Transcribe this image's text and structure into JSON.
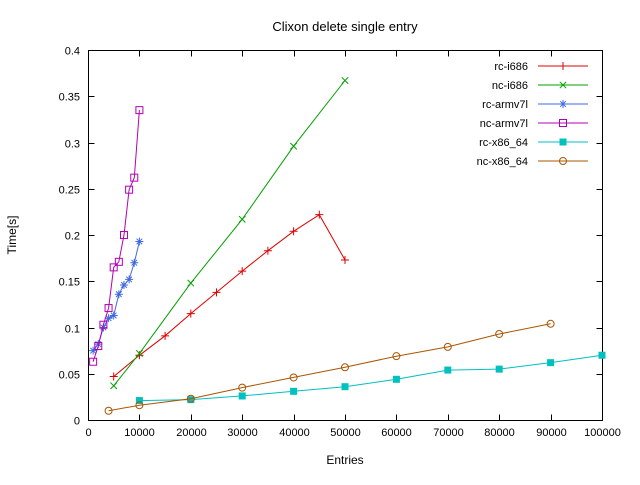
{
  "chart_data": {
    "type": "line",
    "title": "Clixon delete single entry",
    "xlabel": "Entries",
    "ylabel": "Time[s]",
    "xlim": [
      0,
      100000
    ],
    "ylim": [
      0,
      0.4
    ],
    "xticks": [
      0,
      10000,
      20000,
      30000,
      40000,
      50000,
      60000,
      70000,
      80000,
      90000,
      100000
    ],
    "yticks": [
      0,
      0.05,
      0.1,
      0.15,
      0.2,
      0.25,
      0.3,
      0.35,
      0.4
    ],
    "grid": false,
    "legend_position": "top-right-inside",
    "background": "#ffffff",
    "border_color": "#000000",
    "series": [
      {
        "name": "rc-i686",
        "color": "#e00000",
        "marker": "plus",
        "points": [
          [
            5000,
            0.047
          ],
          [
            10000,
            0.07
          ],
          [
            15000,
            0.091
          ],
          [
            20000,
            0.115
          ],
          [
            25000,
            0.138
          ],
          [
            30000,
            0.161
          ],
          [
            35000,
            0.183
          ],
          [
            40000,
            0.204
          ],
          [
            45000,
            0.222
          ],
          [
            50000,
            0.173
          ]
        ]
      },
      {
        "name": "nc-i686",
        "color": "#00a000",
        "marker": "cross",
        "points": [
          [
            5000,
            0.037
          ],
          [
            10000,
            0.072
          ],
          [
            20000,
            0.148
          ],
          [
            30000,
            0.217
          ],
          [
            40000,
            0.296
          ],
          [
            50000,
            0.367
          ]
        ]
      },
      {
        "name": "rc-armv7l",
        "color": "#4169e1",
        "marker": "asterisk",
        "points": [
          [
            1000,
            0.075
          ],
          [
            2000,
            0.082
          ],
          [
            3000,
            0.1
          ],
          [
            4000,
            0.11
          ],
          [
            5000,
            0.113
          ],
          [
            6000,
            0.136
          ],
          [
            7000,
            0.146
          ],
          [
            8000,
            0.152
          ],
          [
            9000,
            0.17
          ],
          [
            10000,
            0.193
          ]
        ]
      },
      {
        "name": "nc-armv7l",
        "color": "#b400b4",
        "marker": "square-open",
        "points": [
          [
            1000,
            0.063
          ],
          [
            2000,
            0.08
          ],
          [
            3000,
            0.103
          ],
          [
            4000,
            0.121
          ],
          [
            5000,
            0.165
          ],
          [
            6000,
            0.171
          ],
          [
            7000,
            0.2
          ],
          [
            8000,
            0.249
          ],
          [
            9000,
            0.262
          ],
          [
            10000,
            0.335
          ]
        ]
      },
      {
        "name": "rc-x86_64",
        "color": "#00c0c0",
        "marker": "square-filled",
        "points": [
          [
            10000,
            0.021
          ],
          [
            20000,
            0.022
          ],
          [
            30000,
            0.026
          ],
          [
            40000,
            0.031
          ],
          [
            50000,
            0.036
          ],
          [
            60000,
            0.044
          ],
          [
            70000,
            0.054
          ],
          [
            80000,
            0.055
          ],
          [
            90000,
            0.062
          ],
          [
            100000,
            0.07
          ]
        ]
      },
      {
        "name": "nc-x86_64",
        "color": "#aa5500",
        "marker": "circle-open",
        "points": [
          [
            4000,
            0.01
          ],
          [
            10000,
            0.016
          ],
          [
            20000,
            0.023
          ],
          [
            30000,
            0.035
          ],
          [
            40000,
            0.046
          ],
          [
            50000,
            0.057
          ],
          [
            60000,
            0.069
          ],
          [
            70000,
            0.079
          ],
          [
            80000,
            0.093
          ],
          [
            90000,
            0.104
          ]
        ]
      }
    ]
  }
}
